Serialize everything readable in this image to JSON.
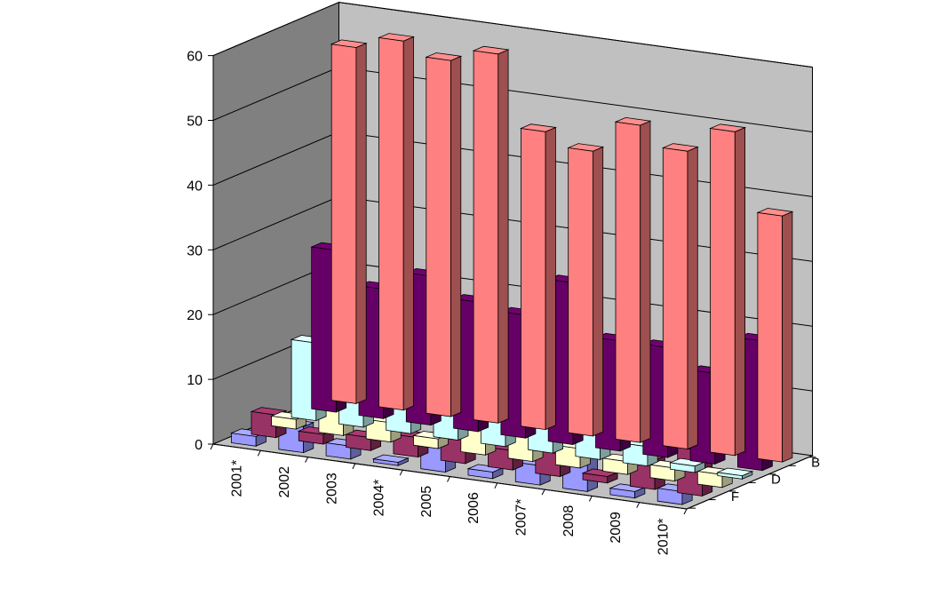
{
  "chart_data": {
    "type": "bar",
    "subtype": "3d-column-grid",
    "title": "",
    "xlabel": "",
    "ylabel": "",
    "zlabel": "",
    "ylim": [
      0,
      60
    ],
    "yticks": [
      0,
      10,
      20,
      30,
      40,
      50,
      60
    ],
    "grid": true,
    "legend": "none",
    "categories": [
      "2001*",
      "2002",
      "2003",
      "2004*",
      "2005",
      "2006",
      "2007*",
      "2008",
      "2009",
      "2010*"
    ],
    "depth_tick_labels": [
      "B",
      "D",
      "F"
    ],
    "series": [
      {
        "color": "#ff8080",
        "values": [
          55,
          57,
          55,
          57,
          46,
          44,
          49,
          46,
          50,
          38
        ]
      },
      {
        "color": "#660066",
        "values": [
          25,
          20,
          23,
          20,
          19,
          25,
          17,
          17,
          14,
          20
        ]
      },
      {
        "color": "#ccffff",
        "values": [
          12,
          9,
          8,
          7,
          6,
          5,
          4,
          3,
          1,
          0.5
        ]
      },
      {
        "color": "#ffffcc",
        "values": [
          1.5,
          4,
          3,
          1.5,
          5,
          5,
          3,
          2,
          2,
          2
        ]
      },
      {
        "color": "#993366",
        "values": [
          3.5,
          1.5,
          2,
          3,
          4,
          3,
          3.5,
          1,
          4.5,
          7
        ]
      },
      {
        "color": "#9999ff",
        "values": [
          1.5,
          4,
          2,
          0.5,
          5,
          1,
          3,
          7,
          1,
          2
        ]
      }
    ]
  }
}
